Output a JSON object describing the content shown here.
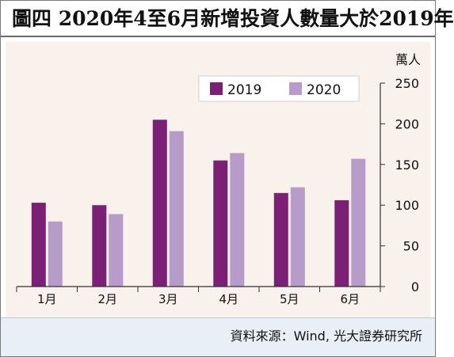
{
  "title": "圖四  2020年4至6月新增投資人數量大於2019年",
  "source": "資料來源：Wind, 光大證券研究所",
  "colors": {
    "s2019": "#7b2075",
    "s2020": "#b79bc9",
    "background": "#f8f1ec",
    "footer": "#e8eff6"
  },
  "chart_data": {
    "type": "bar",
    "unit_label": "萬人",
    "categories": [
      "1月",
      "2月",
      "3月",
      "4月",
      "5月",
      "6月"
    ],
    "series": [
      {
        "name": "2019",
        "values": [
          103,
          100,
          205,
          155,
          115,
          106
        ]
      },
      {
        "name": "2020",
        "values": [
          80,
          89,
          191,
          164,
          122,
          157
        ]
      }
    ],
    "ylim": [
      0,
      250
    ],
    "yticks": [
      0,
      50,
      100,
      150,
      200,
      250
    ],
    "y_axis_side": "right",
    "legend": "top-right",
    "grid": false
  }
}
